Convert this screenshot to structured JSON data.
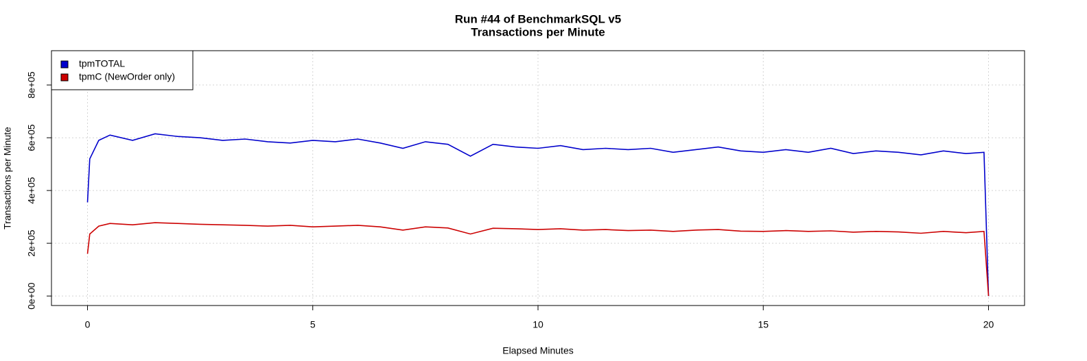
{
  "chart_data": {
    "type": "line",
    "title": "Run #44 of BenchmarkSQL v5",
    "subtitle": "Transactions per Minute",
    "x_label": "Elapsed Minutes",
    "y_label": "Transactions per Minute",
    "x": [
      0,
      0.05,
      0.25,
      0.5,
      1,
      1.5,
      2,
      2.5,
      3,
      3.5,
      4,
      4.5,
      5,
      5.5,
      6,
      6.5,
      7,
      7.5,
      8,
      8.5,
      9,
      9.5,
      10,
      10.5,
      11,
      11.5,
      12,
      12.5,
      13,
      13.5,
      14,
      14.5,
      15,
      15.5,
      16,
      16.5,
      17,
      17.5,
      18,
      18.5,
      19,
      19.5,
      19.9,
      20
    ],
    "series": [
      {
        "name": "tpmTOTAL",
        "color": "#0000cc",
        "values": [
          355000,
          520000,
          590000,
          610000,
          590000,
          615000,
          605000,
          600000,
          590000,
          595000,
          585000,
          580000,
          590000,
          585000,
          595000,
          580000,
          560000,
          585000,
          575000,
          530000,
          575000,
          565000,
          560000,
          570000,
          555000,
          560000,
          555000,
          560000,
          545000,
          555000,
          565000,
          550000,
          545000,
          555000,
          545000,
          560000,
          540000,
          550000,
          545000,
          535000,
          550000,
          540000,
          545000,
          0
        ]
      },
      {
        "name": "tpmC (NewOrder only)",
        "color": "#cc0000",
        "values": [
          160000,
          235000,
          265000,
          275000,
          270000,
          278000,
          275000,
          272000,
          270000,
          268000,
          265000,
          268000,
          262000,
          265000,
          268000,
          262000,
          250000,
          262000,
          258000,
          235000,
          257000,
          255000,
          252000,
          255000,
          250000,
          252000,
          248000,
          250000,
          245000,
          250000,
          252000,
          246000,
          245000,
          248000,
          245000,
          247000,
          242000,
          245000,
          243000,
          238000,
          245000,
          240000,
          245000,
          0
        ]
      }
    ],
    "xlim": [
      -0.8,
      20.8
    ],
    "ylim": [
      -36000,
      930000
    ],
    "xticks": [
      0,
      5,
      10,
      15,
      20
    ],
    "yticks": [
      {
        "value": 0,
        "label": "0e+00"
      },
      {
        "value": 200000,
        "label": "2e+05"
      },
      {
        "value": 400000,
        "label": "4e+05"
      },
      {
        "value": 600000,
        "label": "6e+05"
      },
      {
        "value": 800000,
        "label": "8e+05"
      }
    ],
    "grid": true,
    "legend": "top-left"
  }
}
